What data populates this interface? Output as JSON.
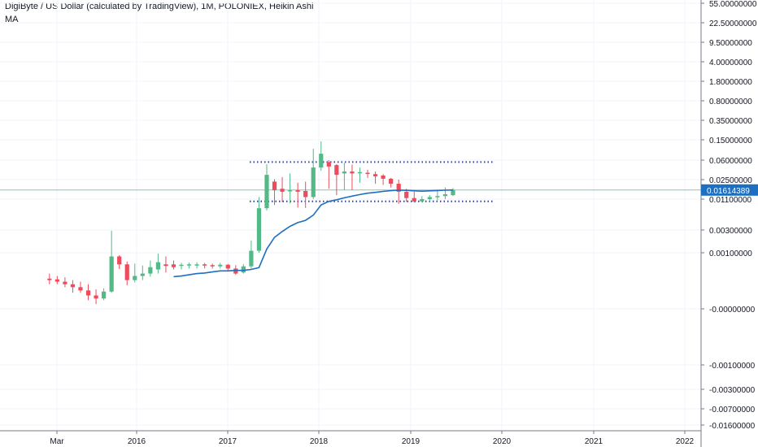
{
  "legend": {
    "title": "DigiByte / US Dollar (calculated by TradingView), 1M, POLONIEX, Heikin Ashi",
    "indicator": "MA"
  },
  "colors": {
    "up": "#53b987",
    "down": "#eb4d5c",
    "ma": "#1e6fc0",
    "level": "#2e3da8",
    "price_tag": "#1e6fc0",
    "last_price_line": "#7fc8c0",
    "grid": "#f0f3fa",
    "axis": "#787b86"
  },
  "chart_data": {
    "type": "candlestick",
    "y_scale": "custom-log",
    "y_ticks": [
      "55.00000000",
      "22.50000000",
      "9.50000000",
      "4.00000000",
      "1.80000000",
      "0.80000000",
      "0.35000000",
      "0.15000000",
      "0.06000000",
      "0.02500000",
      "0.01100000",
      "0.00300000",
      "0.00100000",
      "-0.00000000",
      "-0.00100000",
      "-0.00300000",
      "-0.00700000",
      "-0.01600000"
    ],
    "x_ticks": [
      "Mar",
      "2016",
      "2017",
      "2018",
      "2019",
      "2020",
      "2021",
      "2022"
    ],
    "last_price": "0.01614389",
    "levels": [
      0.055,
      0.01
    ],
    "candles": [
      {
        "date": "2015-02",
        "o": 0.00032,
        "h": 0.0004,
        "l": 0.00025,
        "c": 0.0003
      },
      {
        "date": "2015-03",
        "o": 0.00031,
        "h": 0.00036,
        "l": 0.00025,
        "c": 0.00028
      },
      {
        "date": "2015-04",
        "o": 0.00028,
        "h": 0.00034,
        "l": 0.00022,
        "c": 0.00025
      },
      {
        "date": "2015-05",
        "o": 0.00025,
        "h": 0.0003,
        "l": 0.00017,
        "c": 0.00022
      },
      {
        "date": "2015-06",
        "o": 0.00022,
        "h": 0.00028,
        "l": 0.00017,
        "c": 0.00019
      },
      {
        "date": "2015-07",
        "o": 0.00019,
        "h": 0.00025,
        "l": 0.00012,
        "c": 0.00015
      },
      {
        "date": "2015-08",
        "o": 0.00015,
        "h": 0.0002,
        "l": 0.0001,
        "c": 0.00013
      },
      {
        "date": "2015-09",
        "o": 0.00013,
        "h": 0.00021,
        "l": 0.00012,
        "c": 0.00018
      },
      {
        "date": "2015-10",
        "o": 0.00018,
        "h": 0.0029,
        "l": 0.00017,
        "c": 0.00085
      },
      {
        "date": "2015-11",
        "o": 0.00085,
        "h": 0.0009,
        "l": 0.00049,
        "c": 0.0006
      },
      {
        "date": "2015-12",
        "o": 0.0006,
        "h": 0.00068,
        "l": 0.00024,
        "c": 0.0003
      },
      {
        "date": "2016-01",
        "o": 0.0003,
        "h": 0.00062,
        "l": 0.00027,
        "c": 0.00036
      },
      {
        "date": "2016-02",
        "o": 0.00036,
        "h": 0.00057,
        "l": 0.0003,
        "c": 0.0004
      },
      {
        "date": "2016-03",
        "o": 0.0004,
        "h": 0.00071,
        "l": 0.00035,
        "c": 0.00053
      },
      {
        "date": "2016-04",
        "o": 0.00048,
        "h": 0.00096,
        "l": 0.0004,
        "c": 0.00066
      },
      {
        "date": "2016-05",
        "o": 0.0006,
        "h": 0.00085,
        "l": 0.00042,
        "c": 0.00056
      },
      {
        "date": "2016-06",
        "o": 0.0006,
        "h": 0.00071,
        "l": 0.00048,
        "c": 0.00053
      },
      {
        "date": "2016-07",
        "o": 0.00056,
        "h": 0.00064,
        "l": 0.00048,
        "c": 0.00059
      },
      {
        "date": "2016-08",
        "o": 0.00058,
        "h": 0.00065,
        "l": 0.0005,
        "c": 0.0006
      },
      {
        "date": "2016-09",
        "o": 0.00058,
        "h": 0.00066,
        "l": 0.0005,
        "c": 0.0006
      },
      {
        "date": "2016-10",
        "o": 0.0006,
        "h": 0.00064,
        "l": 0.0005,
        "c": 0.00057
      },
      {
        "date": "2016-11",
        "o": 0.00058,
        "h": 0.00062,
        "l": 0.0005,
        "c": 0.00055
      },
      {
        "date": "2016-12",
        "o": 0.00055,
        "h": 0.00064,
        "l": 0.0005,
        "c": 0.00059
      },
      {
        "date": "2017-01",
        "o": 0.00059,
        "h": 0.00061,
        "l": 0.00045,
        "c": 0.0005
      },
      {
        "date": "2017-02",
        "o": 0.0005,
        "h": 0.00058,
        "l": 0.00038,
        "c": 0.0004
      },
      {
        "date": "2017-03",
        "o": 0.00042,
        "h": 0.00061,
        "l": 0.0004,
        "c": 0.00055
      },
      {
        "date": "2017-04",
        "o": 0.00055,
        "h": 0.0018,
        "l": 0.0005,
        "c": 0.0011
      },
      {
        "date": "2017-05",
        "o": 0.0011,
        "h": 0.012,
        "l": 0.001,
        "c": 0.0075
      },
      {
        "date": "2017-06",
        "o": 0.0075,
        "h": 0.05,
        "l": 0.0068,
        "c": 0.031
      },
      {
        "date": "2017-07",
        "o": 0.023,
        "h": 0.0255,
        "l": 0.0086,
        "c": 0.016
      },
      {
        "date": "2017-08",
        "o": 0.017,
        "h": 0.028,
        "l": 0.0098,
        "c": 0.015
      },
      {
        "date": "2017-09",
        "o": 0.016,
        "h": 0.033,
        "l": 0.0092,
        "c": 0.016
      },
      {
        "date": "2017-10",
        "o": 0.016,
        "h": 0.022,
        "l": 0.0077,
        "c": 0.015
      },
      {
        "date": "2017-11",
        "o": 0.0155,
        "h": 0.023,
        "l": 0.0076,
        "c": 0.012
      },
      {
        "date": "2017-12",
        "o": 0.012,
        "h": 0.1,
        "l": 0.011,
        "c": 0.043
      },
      {
        "date": "2018-01",
        "o": 0.043,
        "h": 0.14,
        "l": 0.037,
        "c": 0.08
      },
      {
        "date": "2018-02",
        "o": 0.055,
        "h": 0.06,
        "l": 0.017,
        "c": 0.045
      },
      {
        "date": "2018-03",
        "o": 0.048,
        "h": 0.05,
        "l": 0.013,
        "c": 0.031
      },
      {
        "date": "2018-04",
        "o": 0.033,
        "h": 0.053,
        "l": 0.016,
        "c": 0.036
      },
      {
        "date": "2018-05",
        "o": 0.036,
        "h": 0.049,
        "l": 0.016,
        "c": 0.033
      },
      {
        "date": "2018-06",
        "o": 0.034,
        "h": 0.043,
        "l": 0.022,
        "c": 0.035
      },
      {
        "date": "2018-07",
        "o": 0.034,
        "h": 0.039,
        "l": 0.027,
        "c": 0.033
      },
      {
        "date": "2018-08",
        "o": 0.032,
        "h": 0.036,
        "l": 0.021,
        "c": 0.029
      },
      {
        "date": "2018-09",
        "o": 0.03,
        "h": 0.032,
        "l": 0.02,
        "c": 0.026
      },
      {
        "date": "2018-10",
        "o": 0.026,
        "h": 0.027,
        "l": 0.018,
        "c": 0.021
      },
      {
        "date": "2018-11",
        "o": 0.021,
        "h": 0.025,
        "l": 0.009,
        "c": 0.015
      },
      {
        "date": "2018-12",
        "o": 0.015,
        "h": 0.017,
        "l": 0.0098,
        "c": 0.0115
      },
      {
        "date": "2019-01",
        "o": 0.0115,
        "h": 0.015,
        "l": 0.0095,
        "c": 0.01
      },
      {
        "date": "2019-02",
        "o": 0.01,
        "h": 0.0125,
        "l": 0.0095,
        "c": 0.011
      },
      {
        "date": "2019-03",
        "o": 0.011,
        "h": 0.013,
        "l": 0.01,
        "c": 0.012
      },
      {
        "date": "2019-04",
        "o": 0.012,
        "h": 0.016,
        "l": 0.0105,
        "c": 0.0125
      },
      {
        "date": "2019-05",
        "o": 0.0125,
        "h": 0.018,
        "l": 0.011,
        "c": 0.0135
      },
      {
        "date": "2019-06",
        "o": 0.013,
        "h": 0.0175,
        "l": 0.0125,
        "c": 0.01614
      }
    ],
    "ma": [
      {
        "date": "2016-06",
        "v": 0.00035
      },
      {
        "date": "2016-07",
        "v": 0.00036
      },
      {
        "date": "2016-08",
        "v": 0.00038
      },
      {
        "date": "2016-09",
        "v": 0.0004
      },
      {
        "date": "2016-10",
        "v": 0.00041
      },
      {
        "date": "2016-11",
        "v": 0.00043
      },
      {
        "date": "2016-12",
        "v": 0.00045
      },
      {
        "date": "2017-01",
        "v": 0.00045
      },
      {
        "date": "2017-02",
        "v": 0.00046
      },
      {
        "date": "2017-03",
        "v": 0.00046
      },
      {
        "date": "2017-04",
        "v": 0.00048
      },
      {
        "date": "2017-05",
        "v": 0.00052
      },
      {
        "date": "2017-06",
        "v": 0.0012
      },
      {
        "date": "2017-07",
        "v": 0.0021
      },
      {
        "date": "2017-08",
        "v": 0.0028
      },
      {
        "date": "2017-09",
        "v": 0.0035
      },
      {
        "date": "2017-10",
        "v": 0.0041
      },
      {
        "date": "2017-11",
        "v": 0.0045
      },
      {
        "date": "2017-12",
        "v": 0.0056
      },
      {
        "date": "2018-01",
        "v": 0.0086
      },
      {
        "date": "2018-02",
        "v": 0.01
      },
      {
        "date": "2018-03",
        "v": 0.0107
      },
      {
        "date": "2018-04",
        "v": 0.0116
      },
      {
        "date": "2018-05",
        "v": 0.0125
      },
      {
        "date": "2018-06",
        "v": 0.0133
      },
      {
        "date": "2018-07",
        "v": 0.0141
      },
      {
        "date": "2018-08",
        "v": 0.0146
      },
      {
        "date": "2018-09",
        "v": 0.0152
      },
      {
        "date": "2018-10",
        "v": 0.0157
      },
      {
        "date": "2018-11",
        "v": 0.016
      },
      {
        "date": "2018-12",
        "v": 0.0159
      },
      {
        "date": "2019-01",
        "v": 0.0156
      },
      {
        "date": "2019-02",
        "v": 0.0154
      },
      {
        "date": "2019-03",
        "v": 0.0156
      },
      {
        "date": "2019-04",
        "v": 0.0158
      },
      {
        "date": "2019-05",
        "v": 0.016
      },
      {
        "date": "2019-06",
        "v": 0.0162
      }
    ]
  }
}
